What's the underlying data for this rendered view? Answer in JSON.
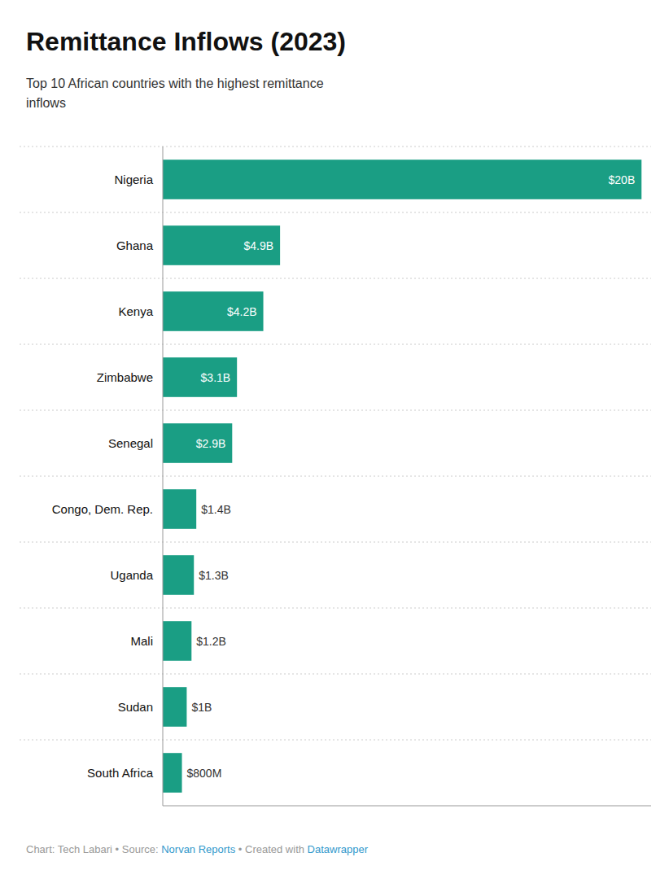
{
  "chart_data": {
    "type": "bar",
    "orientation": "horizontal",
    "title": "Remittance Inflows (2023)",
    "subtitle": "Top 10 African countries with the highest remittance\ninflows",
    "categories": [
      "Nigeria",
      "Ghana",
      "Kenya",
      "Zimbabwe",
      "Senegal",
      "Congo, Dem. Rep.",
      "Uganda",
      "Mali",
      "Sudan",
      "South Africa"
    ],
    "values": [
      20,
      4.9,
      4.2,
      3.1,
      2.9,
      1.4,
      1.3,
      1.2,
      1.0,
      0.8
    ],
    "value_labels": [
      "$20B",
      "$4.9B",
      "$4.2B",
      "$3.1B",
      "$2.9B",
      "$1.4B",
      "$1.3B",
      "$1.2B",
      "$1B",
      "$800M"
    ],
    "color": "#1a9e84",
    "xlim": [
      0,
      20.4
    ],
    "data_labels": true,
    "tick_labels": "y",
    "footer": [
      "Chart: Tech Labari • Source: ",
      "Norvan Reports",
      " • Created with ",
      "Datawrapper"
    ]
  }
}
